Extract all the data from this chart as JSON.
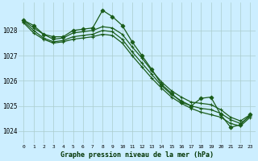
{
  "title": "Graphe pression niveau de la mer (hPa)",
  "background_color": "#cceeff",
  "grid_color": "#aacccc",
  "line_color": "#1a5c1a",
  "ylim": [
    1023.5,
    1029.1
  ],
  "yticks": [
    1024,
    1025,
    1026,
    1027,
    1028
  ],
  "x_ticks": [
    0,
    1,
    2,
    3,
    4,
    5,
    6,
    7,
    8,
    9,
    10,
    11,
    12,
    13,
    14,
    15,
    16,
    17,
    18,
    19,
    20,
    21,
    22,
    23
  ],
  "series": [
    [
      1028.4,
      1028.2,
      1027.85,
      1027.75,
      1027.75,
      1028.0,
      1028.05,
      1028.1,
      1028.8,
      1028.55,
      1028.2,
      1027.55,
      1027.0,
      1026.45,
      1025.85,
      1025.5,
      1025.15,
      1025.0,
      1025.3,
      1025.35,
      1024.65,
      1024.15,
      1024.25,
      1024.65
    ],
    [
      1028.4,
      1028.1,
      1027.85,
      1027.65,
      1027.7,
      1027.9,
      1027.95,
      1028.0,
      1028.15,
      1028.1,
      1027.85,
      1027.35,
      1026.9,
      1026.4,
      1025.95,
      1025.6,
      1025.35,
      1025.15,
      1025.1,
      1025.05,
      1024.85,
      1024.55,
      1024.4,
      1024.65
    ],
    [
      1028.35,
      1028.0,
      1027.7,
      1027.55,
      1027.6,
      1027.75,
      1027.8,
      1027.85,
      1028.0,
      1027.95,
      1027.65,
      1027.15,
      1026.7,
      1026.25,
      1025.8,
      1025.45,
      1025.2,
      1025.0,
      1024.9,
      1024.85,
      1024.7,
      1024.45,
      1024.3,
      1024.6
    ],
    [
      1028.3,
      1027.9,
      1027.65,
      1027.5,
      1027.55,
      1027.65,
      1027.7,
      1027.75,
      1027.85,
      1027.8,
      1027.5,
      1027.0,
      1026.55,
      1026.1,
      1025.7,
      1025.35,
      1025.1,
      1024.9,
      1024.75,
      1024.65,
      1024.55,
      1024.3,
      1024.2,
      1024.55
    ]
  ]
}
